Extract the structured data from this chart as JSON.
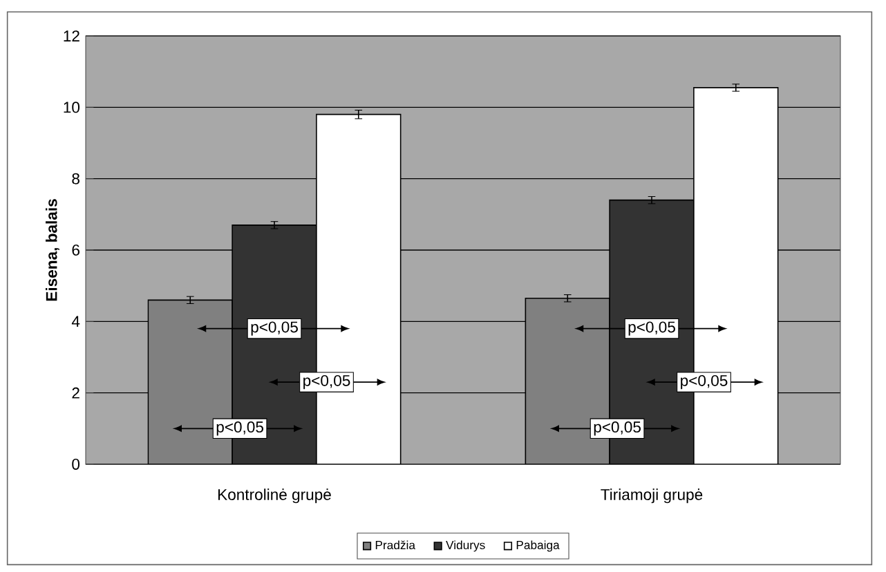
{
  "chart_data": {
    "type": "bar",
    "ylabel": "Eisena, balais",
    "categories": [
      "Kontrolinė grupė",
      "Tiriamoji grupė"
    ],
    "series": [
      {
        "name": "Pradžia",
        "color": "#808080",
        "values": [
          4.6,
          4.65
        ],
        "errors": [
          0.1,
          0.1
        ]
      },
      {
        "name": "Vidurys",
        "color": "#333333",
        "values": [
          6.7,
          7.4
        ],
        "errors": [
          0.1,
          0.1
        ]
      },
      {
        "name": "Pabaiga",
        "color": "#ffffff",
        "values": [
          9.8,
          10.55
        ],
        "errors": [
          0.12,
          0.1
        ]
      }
    ],
    "ylim": [
      0,
      12
    ],
    "yticks": [
      0,
      2,
      4,
      6,
      8,
      10,
      12
    ],
    "grid": "y",
    "legend": "bottom",
    "annotations": [
      "p<0,05",
      "p<0,05",
      "p<0,05",
      "p<0,05",
      "p<0,05",
      "p<0,05"
    ]
  }
}
